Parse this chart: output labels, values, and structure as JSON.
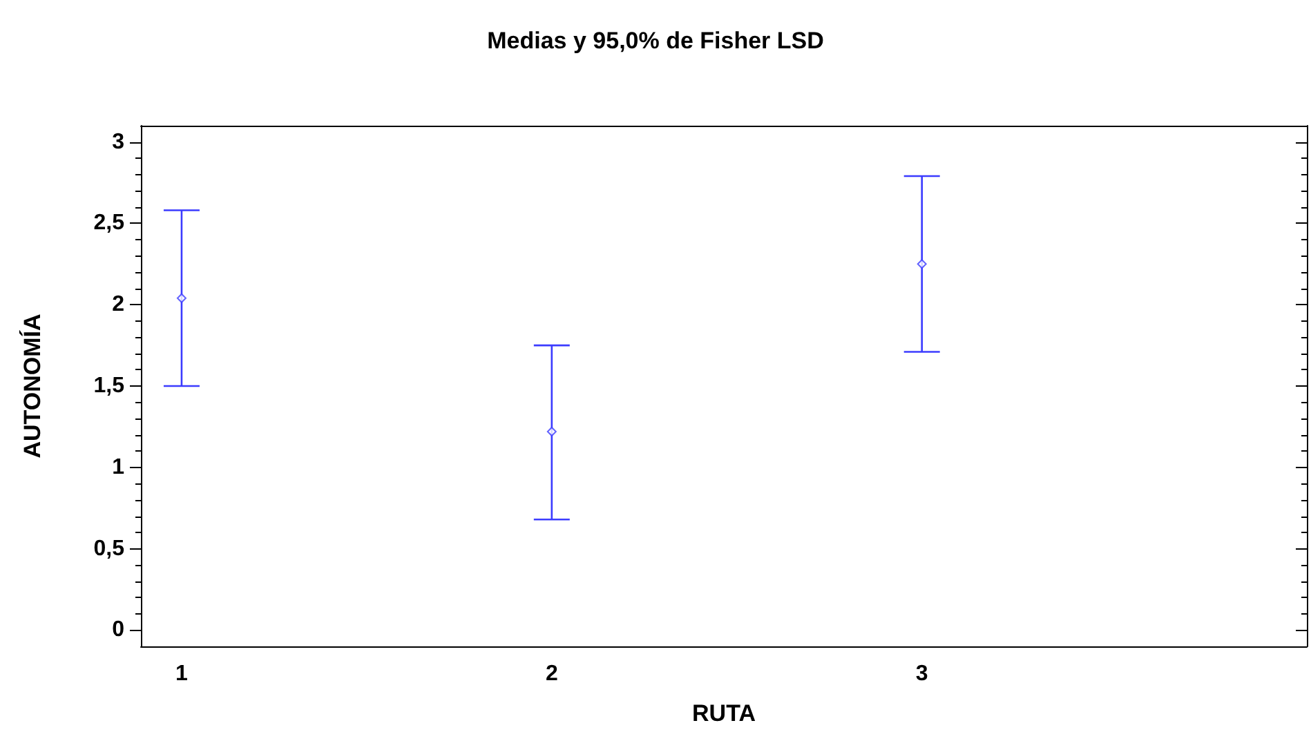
{
  "chart_data": {
    "type": "scatter",
    "title": "Medias y 95,0% de Fisher LSD",
    "xlabel": "RUTA",
    "ylabel": "AUTONOMÍA",
    "categories": [
      "1",
      "2",
      "3"
    ],
    "series": [
      {
        "color": "#3b3bff",
        "values": [
          2.04,
          1.22,
          2.25
        ],
        "errors": [
          [
            1.5,
            2.58
          ],
          [
            0.68,
            1.75
          ],
          [
            1.71,
            2.79
          ]
        ]
      }
    ],
    "ylim": [
      -0.1,
      3.1
    ],
    "yticks": [
      0,
      {
        "value": 0.5,
        "label": "0,5"
      },
      1,
      {
        "value": 1.5,
        "label": "1,5"
      },
      2,
      {
        "value": 2.5,
        "label": "2,5"
      },
      3
    ],
    "marker": "diamond",
    "grid": false
  }
}
